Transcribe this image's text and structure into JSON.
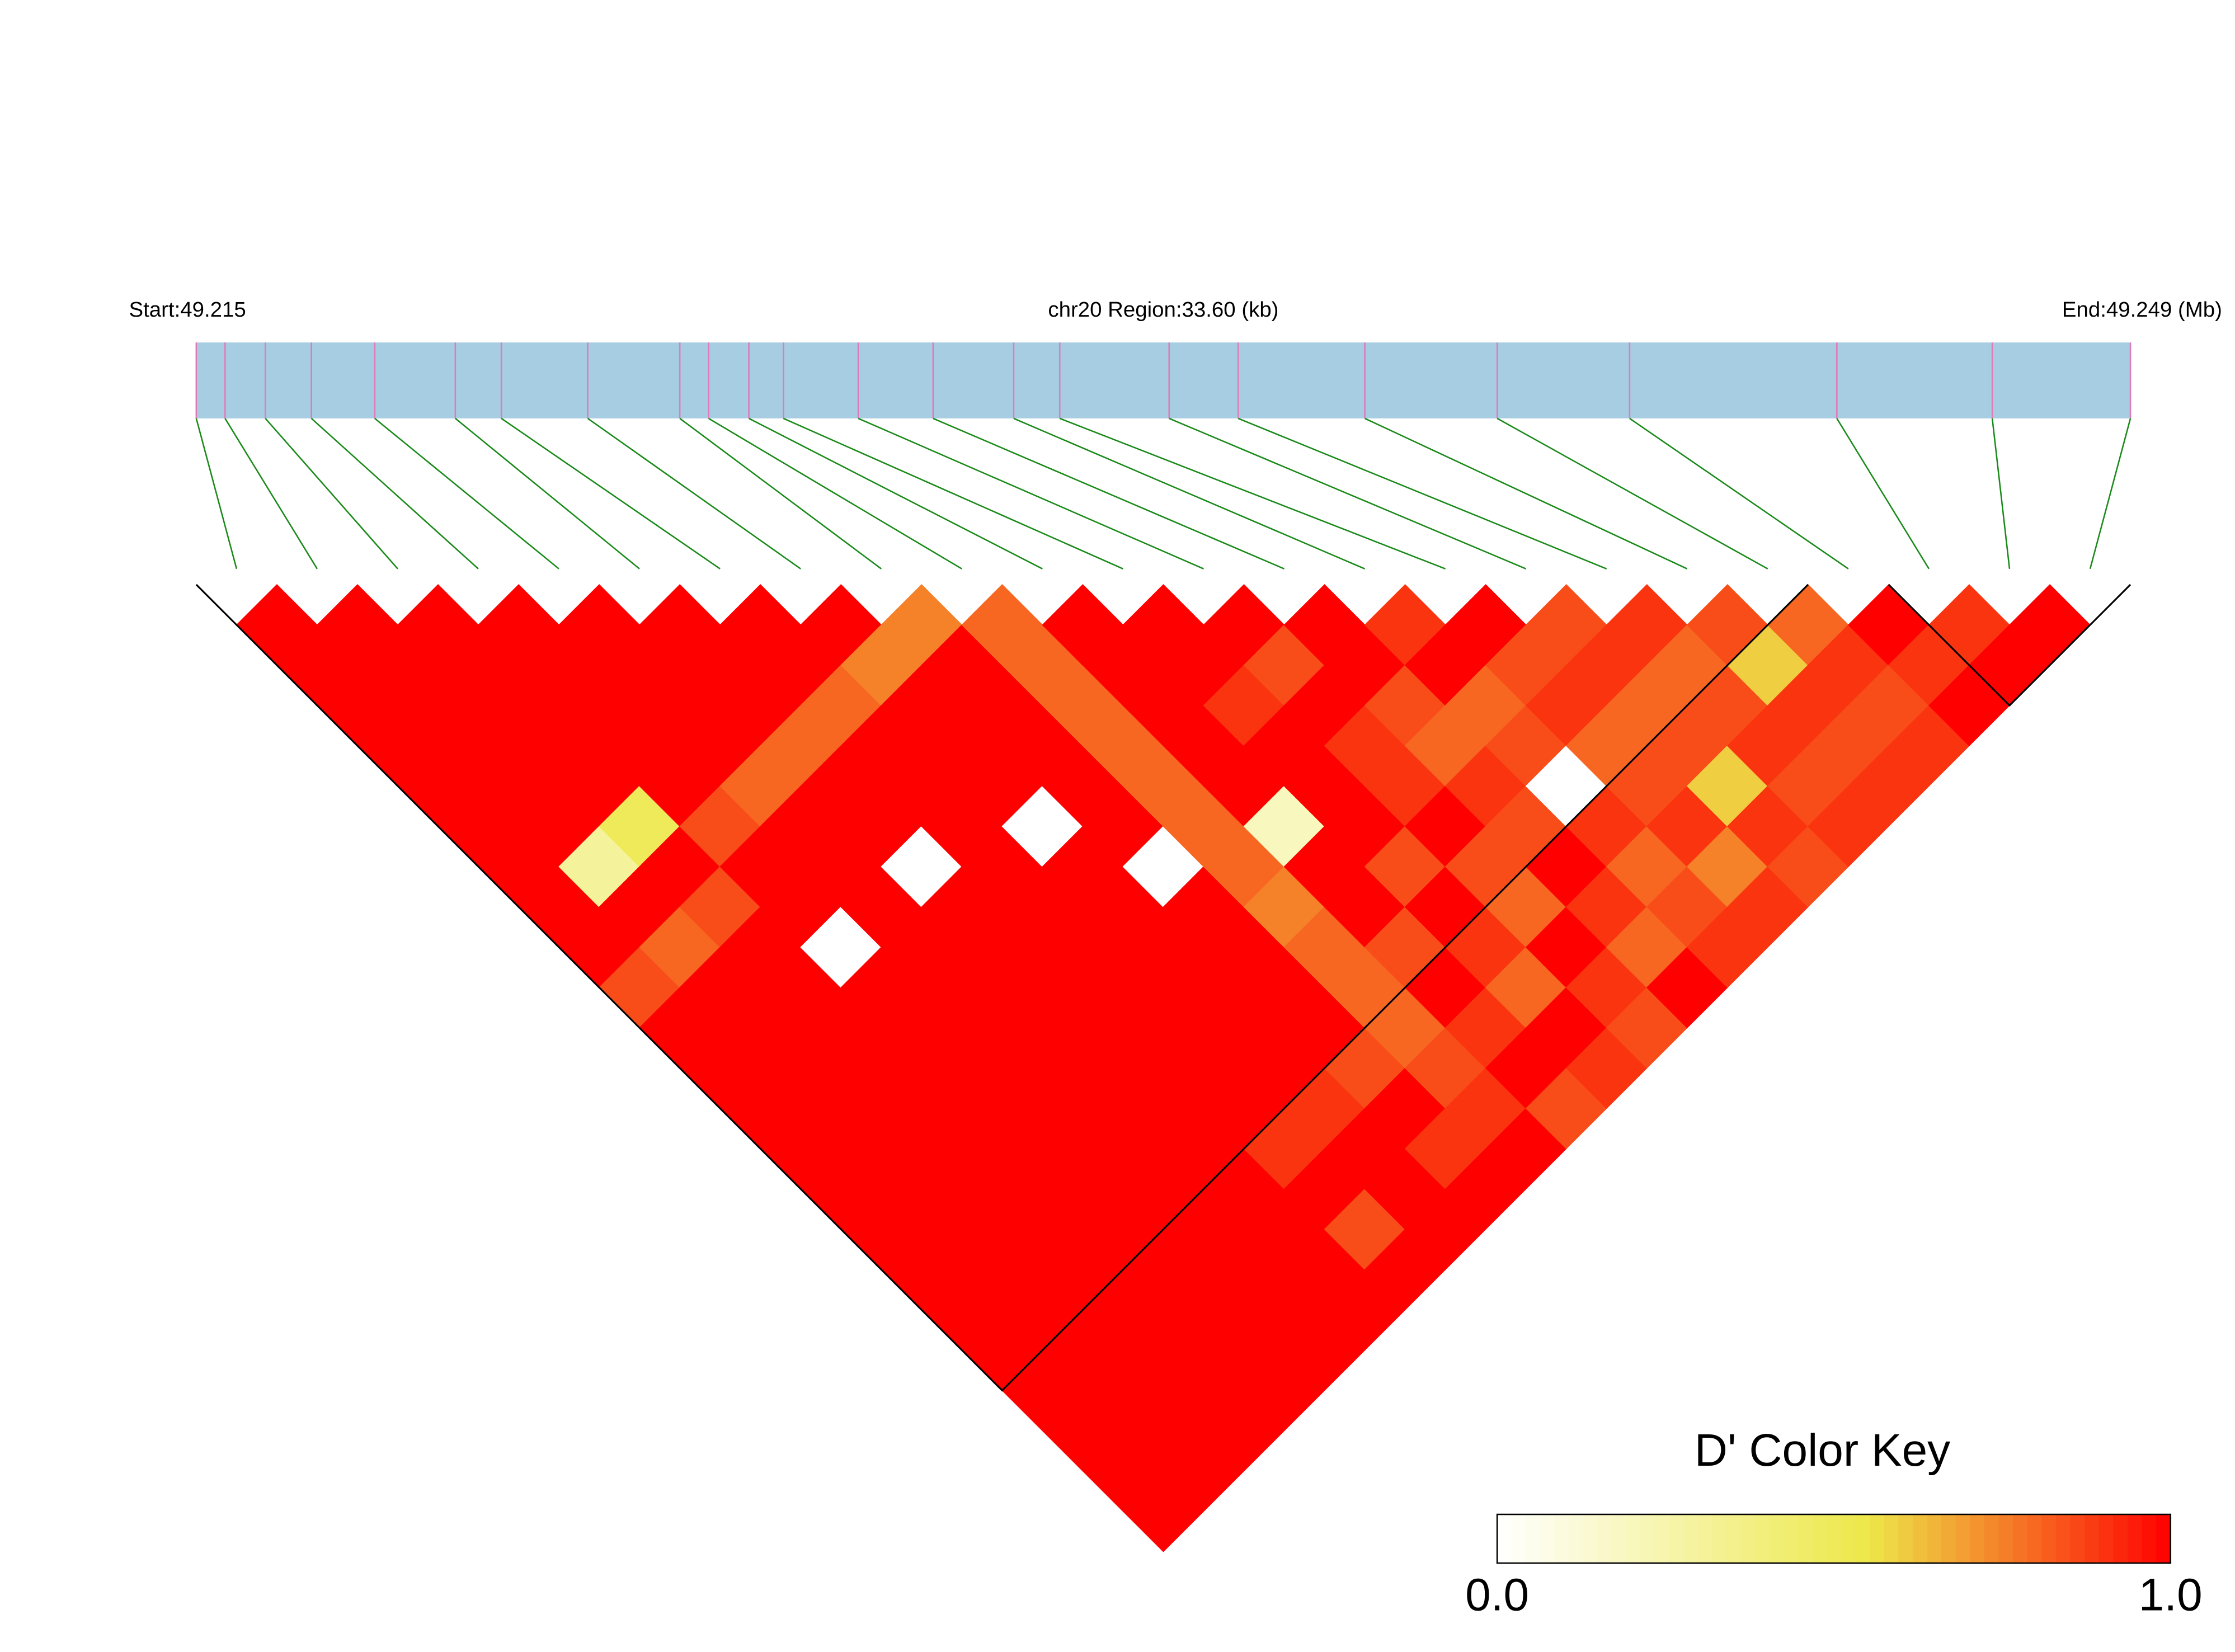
{
  "chart_data": {
    "type": "ld_heatmap",
    "start_label": "Start:49.215",
    "region_label": "chr20 Region:33.60 (kb)",
    "end_label": "End:49.249 (Mb)",
    "key_title": "D' Color Key",
    "xlim": [
      0,
      33.6
    ],
    "snp_positions_kb": [
      0,
      0.5,
      1.2,
      2.0,
      3.1,
      4.5,
      5.3,
      6.8,
      8.4,
      8.9,
      9.6,
      10.2,
      11.5,
      12.8,
      14.2,
      15.0,
      16.9,
      18.1,
      20.3,
      22.6,
      24.9,
      28.5,
      31.2,
      33.6
    ],
    "dprime": [
      [
        1,
        1,
        1,
        1,
        1,
        1,
        1,
        1,
        1,
        0.85,
        1,
        1,
        1,
        1,
        1,
        1,
        1,
        1,
        1,
        1,
        1,
        1,
        1
      ],
      [
        1,
        1,
        1,
        1,
        1,
        1,
        0.3,
        1,
        0.8,
        1,
        1,
        1,
        1,
        1,
        1,
        1,
        1,
        1,
        1,
        1,
        1,
        1
      ],
      [
        1,
        1,
        1,
        1,
        1,
        0.5,
        1,
        0.85,
        1,
        1,
        1,
        1,
        1,
        1,
        1,
        1,
        1,
        1,
        1,
        1,
        1
      ],
      [
        1,
        1,
        1,
        1,
        1,
        0.85,
        1,
        1,
        0,
        1,
        1,
        1,
        1,
        1,
        1,
        1,
        1,
        1,
        1,
        1
      ],
      [
        1,
        1,
        1,
        1,
        0.8,
        1,
        1,
        1,
        1,
        1,
        1,
        1,
        1,
        1,
        1,
        1,
        1,
        1,
        1
      ],
      [
        1,
        1,
        1,
        0.8,
        1,
        1,
        0,
        1,
        1,
        1,
        1,
        1,
        1,
        1,
        1,
        1,
        1,
        1
      ],
      [
        1,
        1,
        0.8,
        1,
        1,
        1,
        1,
        1,
        1,
        1,
        1,
        1,
        1,
        0.9,
        1,
        0.85,
        1
      ],
      [
        1,
        0.75,
        1,
        1,
        1,
        0,
        1,
        1,
        1,
        1,
        1,
        1,
        0.9,
        1,
        1,
        1
      ],
      [
        0.75,
        1,
        1,
        1,
        1,
        1,
        0,
        1,
        1,
        1,
        1,
        0.85,
        1,
        0.9,
        1
      ],
      [
        0.8,
        0.8,
        0.8,
        0.8,
        0.8,
        0.8,
        0.8,
        0.75,
        0.8,
        0.8,
        0.8,
        0.85,
        0.9,
        1
      ],
      [
        1,
        1,
        1,
        1,
        1,
        0.2,
        1,
        1,
        0.85,
        1,
        0.9,
        1,
        0.85
      ],
      [
        1,
        1,
        0.9,
        1,
        1,
        1,
        0.85,
        1,
        0.9,
        0.8,
        1,
        0.9
      ],
      [
        1,
        0.85,
        1,
        0.9,
        0.9,
        1,
        0.85,
        0.8,
        1,
        0.9,
        0.85
      ],
      [
        1,
        1,
        0.85,
        0.8,
        0.9,
        0.85,
        1,
        0.9,
        0.8,
        1
      ],
      [
        0.9,
        1,
        0.8,
        0.85,
        0,
        0.9,
        0.8,
        0.85,
        0.9
      ],
      [
        1,
        0.85,
        0.9,
        0.8,
        0.85,
        0.9,
        0.75,
        0.9
      ],
      [
        0.85,
        0.9,
        0.8,
        0.85,
        0.6,
        0.9,
        0.85
      ],
      [
        0.9,
        0.8,
        0.85,
        0.9,
        0.85,
        0.9
      ],
      [
        0.85,
        0.6,
        0.9,
        0.85,
        0.9
      ],
      [
        0.8,
        0.9,
        0.85,
        0.9
      ],
      [
        1,
        0.9,
        1
      ],
      [
        0.9,
        1
      ],
      [
        1
      ]
    ],
    "blocks": [
      [
        0,
        19
      ],
      [
        21,
        23
      ]
    ],
    "color_scale": [
      {
        "value": 0,
        "color": "#ffffff"
      },
      {
        "value": 0.55,
        "color": "#ede84a"
      },
      {
        "value": 1,
        "color": "#ff0000"
      }
    ],
    "key_lim": [
      0,
      1
    ],
    "key_ticks": [
      {
        "value": 0,
        "label": "0.0"
      },
      {
        "value": 1,
        "label": "1.0"
      }
    ],
    "bar_color": "#a6cde2",
    "snp_tick_color": "#e07ab8",
    "connector_color": "#1a8a1a"
  }
}
